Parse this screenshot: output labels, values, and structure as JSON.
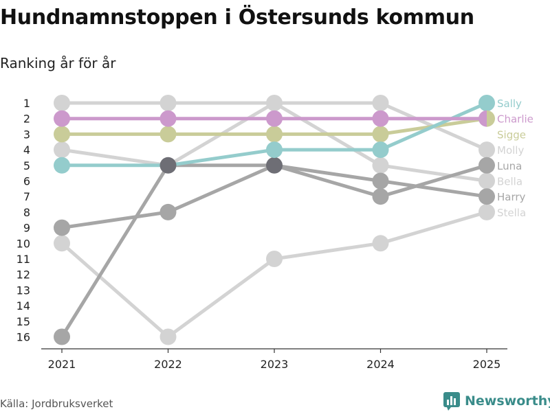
{
  "title": "Hundnamnstoppen i Östersunds kommun",
  "subtitle": "Ranking år för år",
  "source": "Källa: Jordbruksverket",
  "brand": "Newsworthy",
  "chart_data": {
    "type": "line",
    "x": [
      2021,
      2022,
      2023,
      2024,
      2025
    ],
    "xlabels": [
      "2021",
      "2022",
      "2023",
      "2024",
      "2025"
    ],
    "ylim": [
      1,
      16
    ],
    "yticks": [
      1,
      2,
      3,
      4,
      5,
      6,
      7,
      8,
      9,
      10,
      11,
      12,
      13,
      14,
      15,
      16
    ],
    "y_inverted": true,
    "series": [
      {
        "name": "Stella",
        "values": [
          10,
          16,
          11,
          10,
          8
        ],
        "color": "#d3d3d3"
      },
      {
        "name": "Bella",
        "values": [
          1,
          1,
          1,
          5,
          6
        ],
        "color": "#d3d3d3"
      },
      {
        "name": "Molly",
        "values": [
          4,
          5,
          1,
          1,
          4
        ],
        "color": "#d3d3d3"
      },
      {
        "name": "Harry",
        "values": [
          16,
          5,
          5,
          6,
          7
        ],
        "color": "#a6a6a6"
      },
      {
        "name": "Luna",
        "values": [
          9,
          8,
          5,
          7,
          5
        ],
        "color": "#a6a6a6"
      },
      {
        "name": "Sigge",
        "values": [
          3,
          3,
          3,
          3,
          2
        ],
        "color": "#c9cc99"
      },
      {
        "name": "Sally",
        "values": [
          5,
          5,
          4,
          4,
          1
        ],
        "color": "#94cccc"
      },
      {
        "name": "Charlie",
        "values": [
          2,
          2,
          2,
          2,
          2
        ],
        "color": "#cc99cc"
      }
    ],
    "label_order": [
      "Sally",
      "Charlie",
      "Sigge",
      "Molly",
      "Luna",
      "Bella",
      "Harry",
      "Stella"
    ],
    "overlap_color": "#6e6e75"
  }
}
